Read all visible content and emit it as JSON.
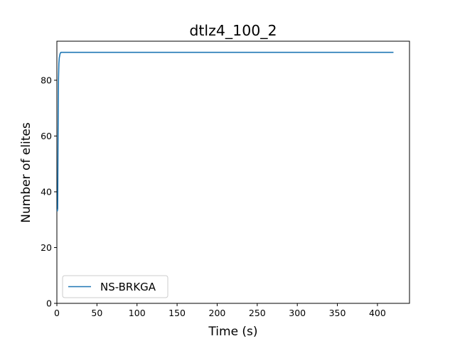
{
  "chart_data": {
    "type": "line",
    "title": "dtlz4_100_2",
    "xlabel": "Time (s)",
    "ylabel": "Number of elites",
    "xlim": [
      0,
      440
    ],
    "ylim": [
      0,
      94
    ],
    "xticks": [
      0,
      50,
      100,
      150,
      200,
      250,
      300,
      350,
      400
    ],
    "yticks": [
      0,
      20,
      40,
      60,
      80
    ],
    "grid": false,
    "legend_position": "lower-left",
    "series": [
      {
        "name": "NS-BRKGA",
        "color": "#1f77b4",
        "x": [
          0.5,
          1.0,
          1.5,
          2.0,
          2.5,
          3.0,
          4.0,
          5.0,
          50,
          100,
          200,
          300,
          420
        ],
        "y": [
          33,
          34,
          60,
          80,
          86,
          88,
          89.5,
          90,
          90,
          90,
          90,
          90,
          90
        ]
      }
    ]
  }
}
